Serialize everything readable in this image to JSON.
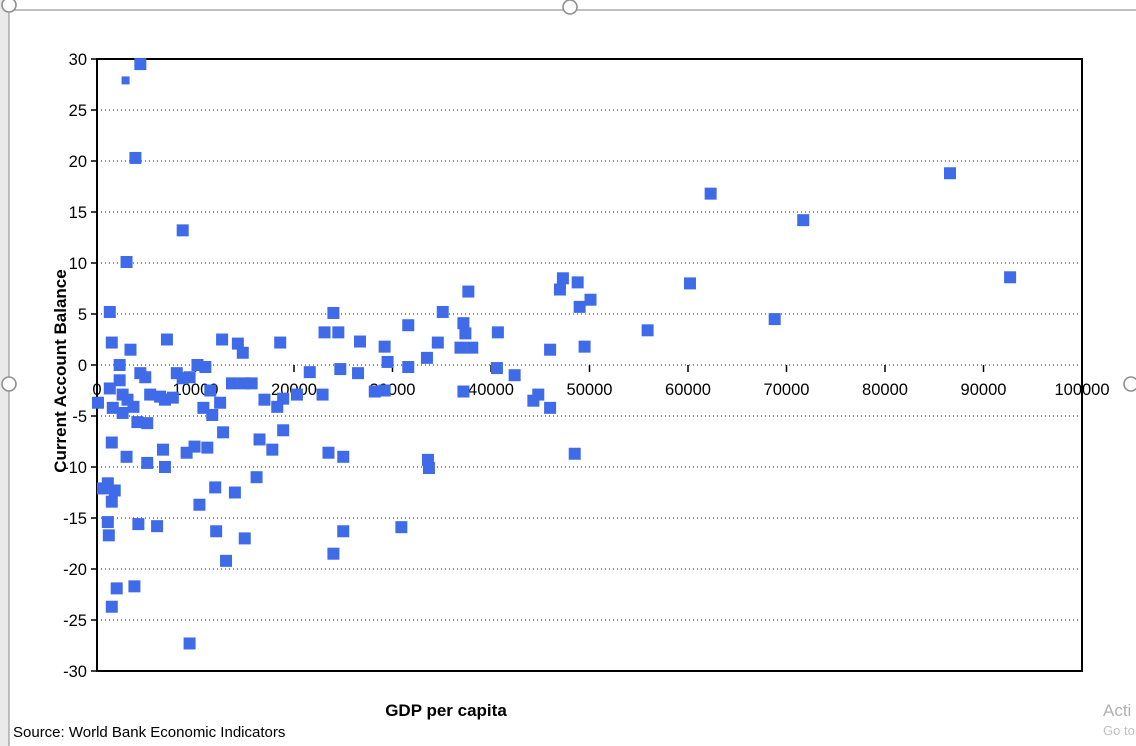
{
  "chart": {
    "x_title": "GDP per capita",
    "y_title": "Current Account Balance",
    "source_note": "Source: World Bank Economic Indicators"
  },
  "watermark": {
    "line1": "Acti",
    "line2": "Go to"
  },
  "selection": {
    "handle_positions": "top-left, top-center, left-middle, right-middle"
  },
  "colors": {
    "marker": "#3f6be9",
    "plot_border": "#000000",
    "gridline": "#1a1a1a",
    "selection_gray": "#909090",
    "watermark_gray": "#b2b2b2"
  },
  "chart_data": {
    "type": "scatter",
    "title": "",
    "xlabel": "GDP per capita",
    "ylabel": "Current Account Balance",
    "xlim": [
      0,
      100000
    ],
    "ylim": [
      -30,
      30
    ],
    "x_ticks": [
      0,
      10000,
      20000,
      30000,
      40000,
      50000,
      60000,
      70000,
      80000,
      90000,
      100000
    ],
    "y_ticks": [
      30,
      25,
      20,
      15,
      10,
      5,
      0,
      -5,
      -10,
      -15,
      -20,
      -25,
      -30
    ],
    "grid": "horizontal dotted gridlines only",
    "legend": "none",
    "marker": {
      "shape": "square",
      "size": 12
    },
    "points": [
      [
        4400,
        29.5
      ],
      [
        2900,
        27.9,
        8
      ],
      [
        3900,
        20.3
      ],
      [
        8700,
        13.2
      ],
      [
        3000,
        10.1
      ],
      [
        1300,
        5.2
      ],
      [
        1500,
        2.2
      ],
      [
        3400,
        1.5
      ],
      [
        7100,
        2.5
      ],
      [
        12700,
        2.5
      ],
      [
        14300,
        2.1
      ],
      [
        14800,
        1.2
      ],
      [
        18600,
        2.2
      ],
      [
        24000,
        5.1
      ],
      [
        23100,
        3.2
      ],
      [
        24500,
        3.2
      ],
      [
        26700,
        2.3
      ],
      [
        29200,
        1.8
      ],
      [
        31600,
        3.9
      ],
      [
        29500,
        0.3
      ],
      [
        31600,
        -0.2
      ],
      [
        33500,
        0.7
      ],
      [
        35100,
        5.2
      ],
      [
        37700,
        7.2
      ],
      [
        47300,
        8.5
      ],
      [
        47000,
        7.4
      ],
      [
        48800,
        8.1
      ],
      [
        50100,
        6.4
      ],
      [
        49000,
        5.7
      ],
      [
        60200,
        8.0
      ],
      [
        37200,
        4.1
      ],
      [
        37400,
        3.1
      ],
      [
        40700,
        3.2
      ],
      [
        34600,
        2.2
      ],
      [
        36900,
        1.7
      ],
      [
        38100,
        1.7
      ],
      [
        46000,
        1.5
      ],
      [
        49500,
        1.8
      ],
      [
        55900,
        3.4
      ],
      [
        86600,
        18.8
      ],
      [
        62300,
        16.8
      ],
      [
        71700,
        14.2
      ],
      [
        92700,
        8.6
      ],
      [
        68800,
        4.5
      ],
      [
        40600,
        -0.3
      ],
      [
        42400,
        -1.0
      ],
      [
        37200,
        -2.6
      ],
      [
        44800,
        -2.9
      ],
      [
        44300,
        -3.5
      ],
      [
        46000,
        -4.2
      ],
      [
        48500,
        -8.7
      ],
      [
        33700,
        -10.1
      ],
      [
        100,
        -3.7
      ],
      [
        1300,
        -2.3
      ],
      [
        2300,
        -1.5
      ],
      [
        2600,
        -2.9
      ],
      [
        3100,
        -3.4
      ],
      [
        1600,
        -4.2
      ],
      [
        2600,
        -4.7
      ],
      [
        3700,
        -4.1
      ],
      [
        4400,
        -0.8
      ],
      [
        4900,
        -1.2
      ],
      [
        5400,
        -2.9
      ],
      [
        4100,
        -5.6
      ],
      [
        5100,
        -5.7
      ],
      [
        6400,
        -3.1
      ],
      [
        6900,
        -3.4
      ],
      [
        8100,
        -0.8
      ],
      [
        8700,
        -1.3
      ],
      [
        7700,
        -3.2
      ],
      [
        9400,
        -1.2
      ],
      [
        10200,
        0.0
      ],
      [
        11000,
        -0.2
      ],
      [
        11500,
        -2.5
      ],
      [
        2300,
        0.0
      ],
      [
        1500,
        -7.6
      ],
      [
        3000,
        -9.0
      ],
      [
        5100,
        -9.6
      ],
      [
        6700,
        -8.3
      ],
      [
        6900,
        -10.0
      ],
      [
        9100,
        -8.6
      ],
      [
        9900,
        -8.0
      ],
      [
        11200,
        -8.1
      ],
      [
        1100,
        -11.6
      ],
      [
        600,
        -12.1
      ],
      [
        1800,
        -12.3
      ],
      [
        1500,
        -13.4
      ],
      [
        1100,
        -15.4
      ],
      [
        1200,
        -16.7
      ],
      [
        4200,
        -15.6
      ],
      [
        6100,
        -15.8
      ],
      [
        2000,
        -21.9
      ],
      [
        3800,
        -21.7
      ],
      [
        1500,
        -23.7
      ],
      [
        9400,
        -27.3
      ],
      [
        12500,
        -3.7
      ],
      [
        13700,
        -1.8
      ],
      [
        14900,
        -1.8
      ],
      [
        15700,
        -1.8
      ],
      [
        17000,
        -3.4
      ],
      [
        18900,
        -3.3
      ],
      [
        20300,
        -2.9
      ],
      [
        22900,
        -2.9
      ],
      [
        21600,
        -0.7
      ],
      [
        24700,
        -0.4
      ],
      [
        26500,
        -0.8
      ],
      [
        28200,
        -2.6
      ],
      [
        29200,
        -2.5
      ],
      [
        10800,
        -4.2
      ],
      [
        11700,
        -4.9
      ],
      [
        18300,
        -4.1
      ],
      [
        12800,
        -6.6
      ],
      [
        18900,
        -6.4
      ],
      [
        16500,
        -7.3
      ],
      [
        17800,
        -8.3
      ],
      [
        23500,
        -8.6
      ],
      [
        25000,
        -9.0
      ],
      [
        33600,
        -9.3
      ],
      [
        12000,
        -12.0
      ],
      [
        14000,
        -12.5
      ],
      [
        16200,
        -11.0
      ],
      [
        10400,
        -13.7
      ],
      [
        12100,
        -16.3
      ],
      [
        15000,
        -17.0
      ],
      [
        13100,
        -19.2
      ],
      [
        24000,
        -18.5
      ],
      [
        25000,
        -16.3
      ],
      [
        30900,
        -15.9
      ]
    ]
  }
}
